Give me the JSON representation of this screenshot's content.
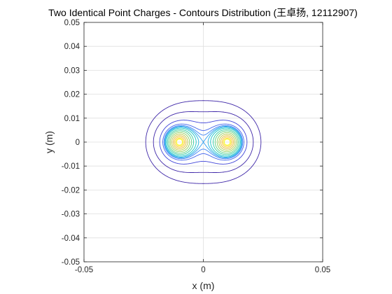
{
  "chart_data": {
    "type": "contour",
    "title": "Two Identical Point Charges - Contours Distribution (王卓扬, 12112907)",
    "xlabel": "x (m)",
    "ylabel": "y (m)",
    "xlim": [
      -0.05,
      0.05
    ],
    "ylim": [
      -0.05,
      0.05
    ],
    "x_ticks": [
      "-0.05",
      "0",
      "0.05"
    ],
    "y_ticks": [
      "0.05",
      "0.04",
      "0.03",
      "0.02",
      "0.01",
      "0",
      "-0.01",
      "-0.02",
      "-0.03",
      "-0.04",
      "-0.05"
    ],
    "grid": true,
    "colormap": "parula",
    "charges": [
      {
        "x": -0.01,
        "y": 0
      },
      {
        "x": 0.01,
        "y": 0
      }
    ],
    "contour_levels_relative": [
      0.5,
      0.62,
      0.78,
      0.9,
      0.96,
      1.0,
      1.04,
      1.1,
      1.2,
      1.32,
      1.5,
      1.75,
      2.1,
      2.6,
      3.3,
      4.3
    ],
    "level_colors": [
      "#3e26a8",
      "#3e26a8",
      "#4145d8",
      "#4465ec",
      "#3f84f4",
      "#2f9ff0",
      "#1fb3dd",
      "#14c2c4",
      "#30cba3",
      "#5ccf80",
      "#8dcd5b",
      "#bbc743",
      "#e2bb3a",
      "#fbc432",
      "#f8e021",
      "#f9fb15"
    ]
  }
}
